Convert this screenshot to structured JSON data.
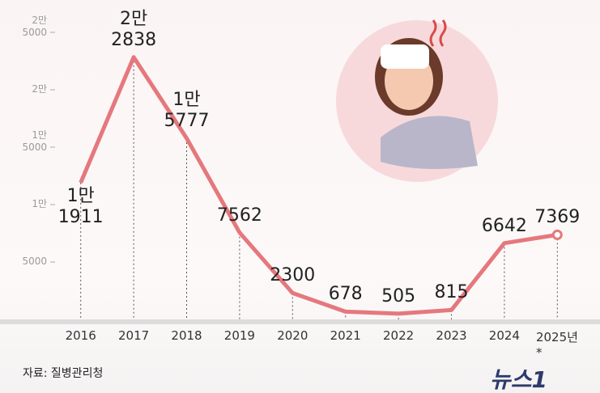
{
  "chart_data": {
    "type": "line",
    "categories": [
      "2016",
      "2017",
      "2018",
      "2019",
      "2020",
      "2021",
      "2022",
      "2023",
      "2024",
      "2025년*"
    ],
    "values": [
      11911,
      22838,
      15777,
      7562,
      2300,
      678,
      505,
      815,
      6642,
      7369
    ],
    "value_labels": [
      "1만\n1911",
      "2만\n2838",
      "1만\n5777",
      "7562",
      "2300",
      "678",
      "505",
      "815",
      "6642",
      "7369"
    ],
    "color": "#e5787d",
    "ylim": [
      0,
      25000
    ],
    "yticks": [
      {
        "value": 5000,
        "label": "5000"
      },
      {
        "value": 10000,
        "label": "1만"
      },
      {
        "value": 15000,
        "label": "1만\n5000"
      },
      {
        "value": 20000,
        "label": "2만"
      },
      {
        "value": 25000,
        "label": "2만\n5000"
      }
    ],
    "source": "자료: 질병관리청",
    "logo": "뉴스1"
  }
}
